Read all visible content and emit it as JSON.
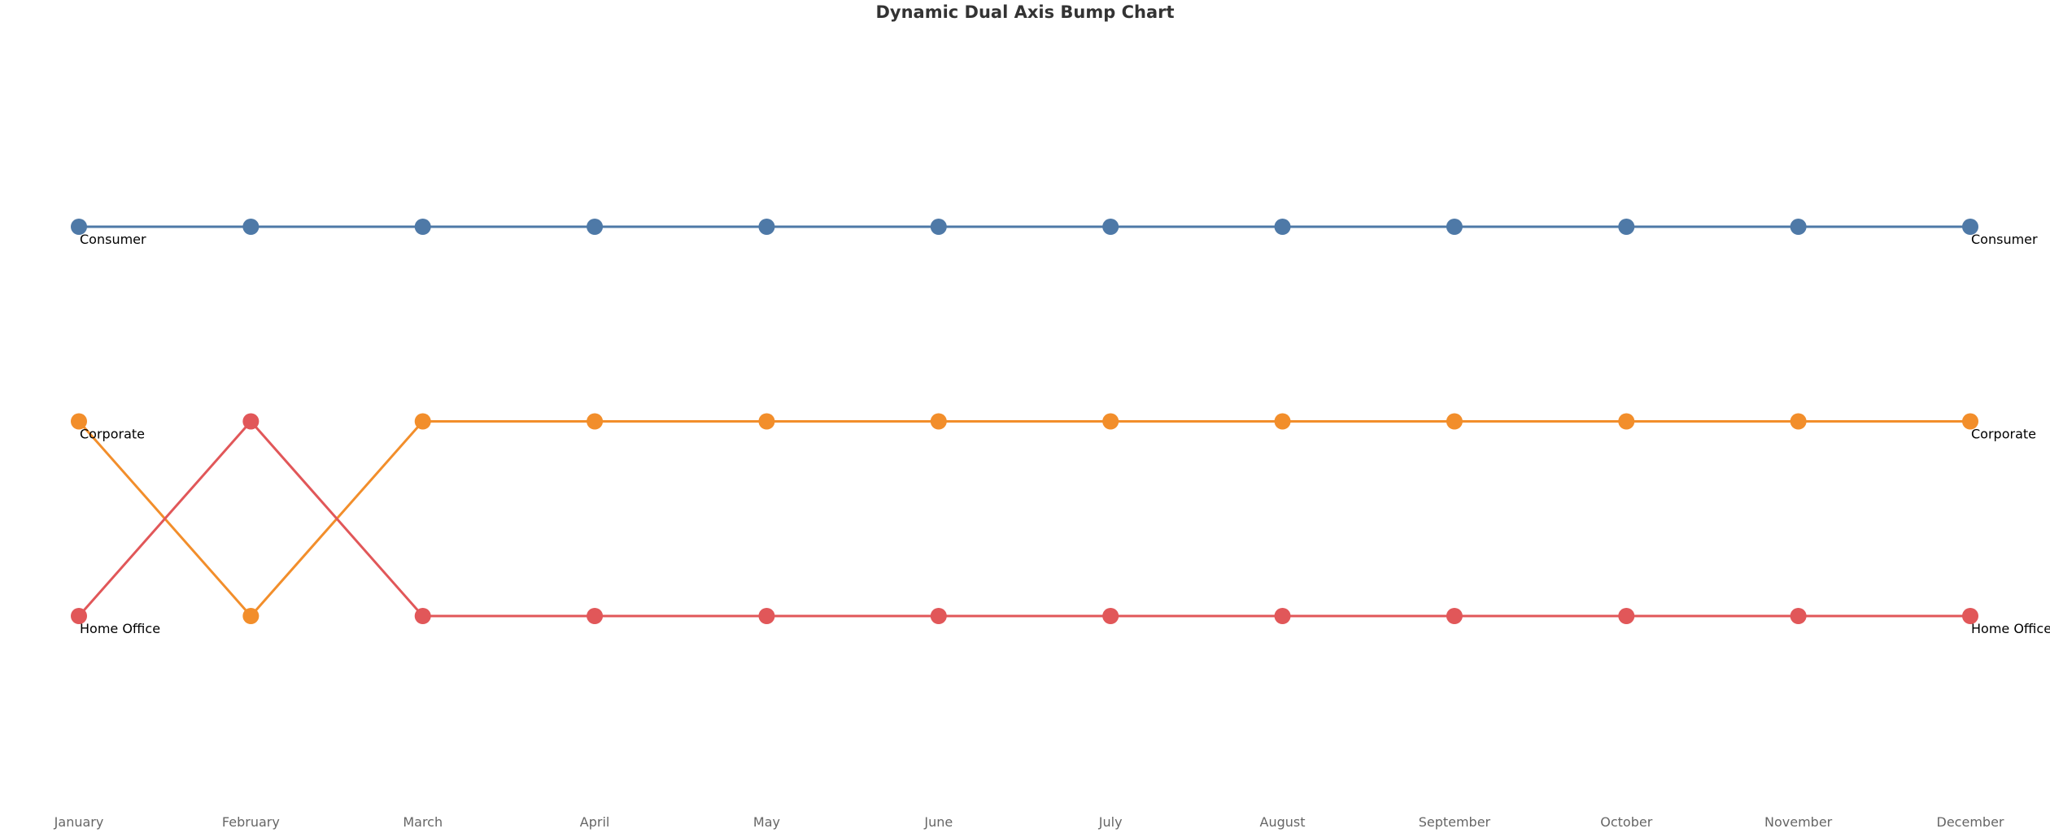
{
  "chart_data": {
    "type": "line",
    "title": "Dynamic Dual Axis Bump Chart",
    "xlabel": "",
    "ylabel": "",
    "categories": [
      "January",
      "February",
      "March",
      "April",
      "May",
      "June",
      "July",
      "August",
      "September",
      "October",
      "November",
      "December"
    ],
    "y_scale": "rank",
    "ylim": [
      1,
      3
    ],
    "y_reversed": true,
    "grid": false,
    "legend": "none",
    "series": [
      {
        "name": "Consumer",
        "color": "#4e79a7",
        "values": [
          1,
          1,
          1,
          1,
          1,
          1,
          1,
          1,
          1,
          1,
          1,
          1
        ]
      },
      {
        "name": "Corporate",
        "color": "#f28e2b",
        "values": [
          2,
          3,
          2,
          2,
          2,
          2,
          2,
          2,
          2,
          2,
          2,
          2
        ]
      },
      {
        "name": "Home Office",
        "color": "#e15759",
        "values": [
          3,
          2,
          3,
          3,
          3,
          3,
          3,
          3,
          3,
          3,
          3,
          3
        ]
      }
    ]
  }
}
